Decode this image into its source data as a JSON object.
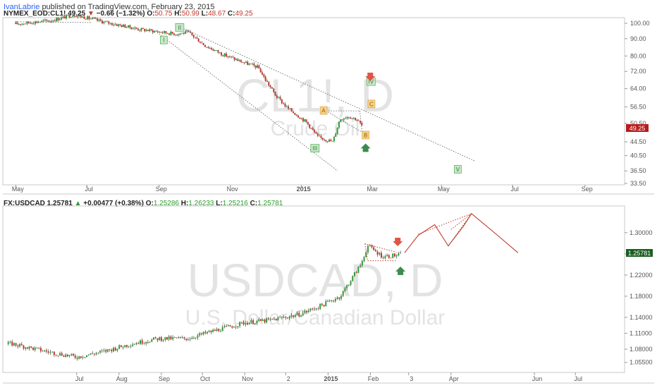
{
  "header": {
    "author": "IvanLabrie",
    "text": "published on TradingView.com, February 23, 2015"
  },
  "colors": {
    "up_candle": "#2e9c2e",
    "down_candle": "#c0392b",
    "projection": "#c0392b",
    "label_green_bg": "#c8e6c9",
    "label_orange_bg": "#f6d28b",
    "arrow_red": "#e05545",
    "arrow_green": "#3d8b4f"
  },
  "chart_data": [
    {
      "type": "candlestick",
      "symbol_line": {
        "symbol": "NYMEX_EOD:CL1!",
        "last": "49.25",
        "change": "−0.66 (−1.32%)",
        "o_label": "O:",
        "o": "50.75",
        "h_label": "H:",
        "h": "50.99",
        "l_label": "L:",
        "l": "48.67",
        "c_label": "C:",
        "c": "49.25"
      },
      "watermark": {
        "title": "CL1!, D",
        "subtitle": "Crude Oil"
      },
      "y_ticks": [
        "100.00",
        "90.00",
        "80.00",
        "72.00",
        "64.00",
        "56.50",
        "50.50",
        "44.50",
        "40.50",
        "36.50",
        "33.50"
      ],
      "y_tick_values": [
        100,
        90,
        80,
        72,
        64,
        56.5,
        50.5,
        44.5,
        40.5,
        36.5,
        33.5
      ],
      "x_ticks": [
        "May",
        "Jul",
        "Sep",
        "Nov",
        "2015",
        "Mar",
        "May",
        "Jul",
        "Sep"
      ],
      "last_price_badge": "49.25",
      "price_path": {
        "dates": [
          "2014-05-01",
          "2014-06-01",
          "2014-06-20",
          "2014-07-15",
          "2014-08-15",
          "2014-09-15",
          "2014-09-26",
          "2014-10-10",
          "2014-10-25",
          "2014-11-10",
          "2014-11-25",
          "2014-12-01",
          "2014-12-10",
          "2014-12-20",
          "2015-01-05",
          "2015-01-15",
          "2015-01-28",
          "2015-02-03",
          "2015-02-10",
          "2015-02-17",
          "2015-02-23"
        ],
        "closes": [
          99.5,
          102,
          106,
          101,
          96,
          93,
          94,
          86,
          81,
          77,
          74,
          68,
          61,
          56,
          51,
          46,
          44.5,
          52,
          53,
          52,
          49.25
        ]
      },
      "wave_labels": [
        {
          "text": "I",
          "date": "2014-09-05",
          "price": 89,
          "style": "green"
        },
        {
          "text": "II",
          "date": "2014-09-18",
          "price": 97,
          "style": "green"
        },
        {
          "text": "III",
          "date": "2015-01-12",
          "price": 42.5,
          "style": "green"
        },
        {
          "text": "IV",
          "date": "2015-03-01",
          "price": 67,
          "style": "green"
        },
        {
          "text": "V",
          "date": "2015-05-15",
          "price": 36.8,
          "style": "green"
        },
        {
          "text": "A",
          "date": "2015-01-20",
          "price": 55,
          "style": "orange"
        },
        {
          "text": "B",
          "date": "2015-02-25",
          "price": 46.5,
          "style": "orange"
        },
        {
          "text": "C",
          "date": "2015-03-02",
          "price": 57.5,
          "style": "orange"
        }
      ]
    },
    {
      "type": "candlestick",
      "symbol_line": {
        "symbol": "FX:USDCAD",
        "last": "1.25781",
        "change": "+0.00477 (+0.38%)",
        "o_label": "O:",
        "o": "1.25286",
        "h_label": "H:",
        "h": "1.26233",
        "l_label": "L:",
        "l": "1.25216",
        "c_label": "C:",
        "c": "1.25781"
      },
      "watermark": {
        "title": "USDCAD, D",
        "subtitle": "U.S. Dollar/Canadian Dollar"
      },
      "y_ticks": [
        "1.30000",
        "1.26000",
        "1.22000",
        "1.18000",
        "1.14000",
        "1.11000",
        "1.08000",
        "1.05500"
      ],
      "y_tick_values": [
        1.3,
        1.26,
        1.22,
        1.18,
        1.14,
        1.11,
        1.08,
        1.055
      ],
      "x_ticks": [
        "Jul",
        "Aug",
        "Sep",
        "Oct",
        "Nov",
        "2",
        "2015",
        "Feb",
        "3",
        "Apr",
        "Jun",
        "Jul"
      ],
      "last_price_badge": "1.25781",
      "price_path": {
        "dates": [
          "2014-05-15",
          "2014-06-10",
          "2014-07-01",
          "2014-07-20",
          "2014-08-10",
          "2014-08-30",
          "2014-09-20",
          "2014-10-10",
          "2014-11-01",
          "2014-11-20",
          "2014-12-10",
          "2014-12-25",
          "2015-01-10",
          "2015-01-25",
          "2015-01-30",
          "2015-02-10",
          "2015-02-23"
        ],
        "closes": [
          1.09,
          1.075,
          1.065,
          1.075,
          1.09,
          1.1,
          1.1,
          1.115,
          1.13,
          1.135,
          1.145,
          1.16,
          1.18,
          1.24,
          1.275,
          1.255,
          1.2578
        ]
      },
      "projection": {
        "dates": [
          "2015-02-26",
          "2015-03-08",
          "2015-03-20",
          "2015-03-30",
          "2015-04-10",
          "2015-04-16",
          "2015-05-05",
          "2015-05-20"
        ],
        "values": [
          1.262,
          1.295,
          1.315,
          1.275,
          1.312,
          1.336,
          1.295,
          1.262
        ]
      }
    }
  ]
}
